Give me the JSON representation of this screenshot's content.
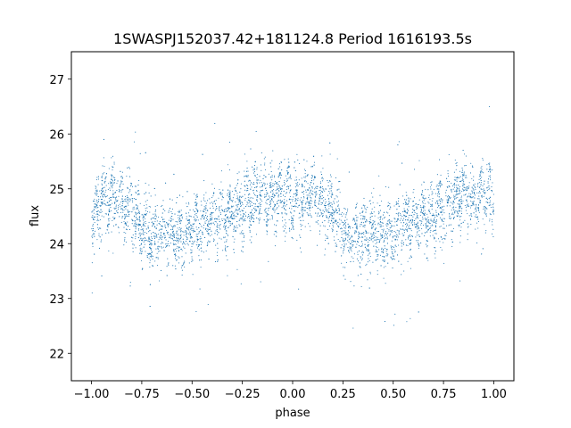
{
  "chart_data": {
    "type": "scatter",
    "title": "1SWASPJ152037.42+181124.8 Period 1616193.5s",
    "xlabel": "phase",
    "ylabel": "flux",
    "xlim": [
      -1.1,
      1.1
    ],
    "ylim": [
      21.5,
      27.5
    ],
    "x_ticks": [
      -1.0,
      -0.75,
      -0.5,
      -0.25,
      0.0,
      0.25,
      0.5,
      0.75,
      1.0
    ],
    "x_tick_labels": [
      "−1.00",
      "−0.75",
      "−0.50",
      "−0.25",
      "0.00",
      "0.25",
      "0.50",
      "0.75",
      "1.00"
    ],
    "y_ticks": [
      22,
      23,
      24,
      25,
      26,
      27
    ],
    "y_tick_labels": [
      "22",
      "23",
      "24",
      "25",
      "26",
      "27"
    ],
    "grid": false,
    "legend": "none",
    "point_color": "#1f77b4",
    "series": [
      {
        "description_profile": [
          {
            "phase": -1.0,
            "flux": 24.3
          },
          {
            "phase": -0.95,
            "flux": 24.8
          },
          {
            "phase": -0.9,
            "flux": 24.9
          },
          {
            "phase": -0.85,
            "flux": 24.7
          },
          {
            "phase": -0.8,
            "flux": 24.6
          },
          {
            "phase": -0.75,
            "flux": 24.3
          },
          {
            "phase": -0.7,
            "flux": 24.1
          },
          {
            "phase": -0.65,
            "flux": 24.2
          },
          {
            "phase": -0.6,
            "flux": 24.2
          },
          {
            "phase": -0.55,
            "flux": 24.1
          },
          {
            "phase": -0.5,
            "flux": 24.2
          },
          {
            "phase": -0.45,
            "flux": 24.3
          },
          {
            "phase": -0.4,
            "flux": 24.4
          },
          {
            "phase": -0.35,
            "flux": 24.5
          },
          {
            "phase": -0.3,
            "flux": 24.5
          },
          {
            "phase": -0.25,
            "flux": 24.6
          },
          {
            "phase": -0.2,
            "flux": 24.8
          },
          {
            "phase": -0.15,
            "flux": 24.9
          },
          {
            "phase": -0.1,
            "flux": 24.8
          },
          {
            "phase": -0.05,
            "flux": 24.9
          },
          {
            "phase": 0.0,
            "flux": 24.8
          },
          {
            "phase": 0.05,
            "flux": 24.8
          },
          {
            "phase": 0.1,
            "flux": 24.9
          },
          {
            "phase": 0.15,
            "flux": 24.7
          },
          {
            "phase": 0.2,
            "flux": 24.6
          },
          {
            "phase": 0.25,
            "flux": 24.3
          },
          {
            "phase": 0.3,
            "flux": 24.1
          },
          {
            "phase": 0.35,
            "flux": 24.2
          },
          {
            "phase": 0.4,
            "flux": 24.2
          },
          {
            "phase": 0.45,
            "flux": 24.1
          },
          {
            "phase": 0.5,
            "flux": 24.2
          },
          {
            "phase": 0.55,
            "flux": 24.3
          },
          {
            "phase": 0.6,
            "flux": 24.4
          },
          {
            "phase": 0.65,
            "flux": 24.5
          },
          {
            "phase": 0.7,
            "flux": 24.5
          },
          {
            "phase": 0.75,
            "flux": 24.6
          },
          {
            "phase": 0.8,
            "flux": 24.8
          },
          {
            "phase": 0.85,
            "flux": 24.9
          },
          {
            "phase": 0.9,
            "flux": 24.8
          },
          {
            "phase": 0.95,
            "flux": 24.9
          },
          {
            "phase": 1.0,
            "flux": 24.8
          }
        ]
      }
    ]
  }
}
